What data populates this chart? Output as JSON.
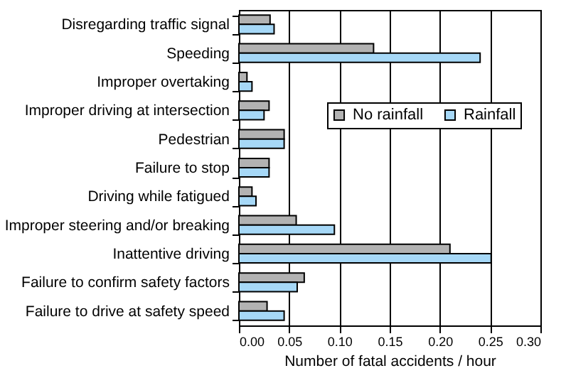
{
  "chart_data": {
    "type": "bar",
    "orientation": "horizontal",
    "xlabel": "Number of fatal accidents / hour",
    "categories": [
      "Disregarding traffic signal",
      "Speeding",
      "Improper overtaking",
      "Improper driving at intersection",
      "Pedestrian",
      "Failure to stop",
      "Driving while fatigued",
      "Improper steering and/or breaking",
      "Inattentive driving",
      "Failure to confirm safety factors",
      "Failure to drive at safety speed"
    ],
    "series": [
      {
        "name": "No rainfall",
        "color": "#b2b2b2",
        "values": [
          0.031,
          0.134,
          0.008,
          0.03,
          0.045,
          0.03,
          0.013,
          0.057,
          0.21,
          0.065,
          0.028
        ]
      },
      {
        "name": "Rainfall",
        "color": "#a6d8f7",
        "values": [
          0.035,
          0.24,
          0.013,
          0.025,
          0.045,
          0.03,
          0.017,
          0.095,
          0.251,
          0.058,
          0.045
        ]
      }
    ],
    "xlim": [
      0,
      0.3
    ],
    "xticks": [
      {
        "value": 0,
        "label": "0.00"
      },
      {
        "value": 0.05,
        "label": "0.05"
      },
      {
        "value": 0.1,
        "label": "0.10"
      },
      {
        "value": 0.15,
        "label": "0.15"
      },
      {
        "value": 0.2,
        "label": "0.20"
      },
      {
        "value": 0.25,
        "label": "0.25"
      },
      {
        "value": 0.3,
        "label": "0.30"
      }
    ],
    "grid": "x",
    "legend": "right"
  }
}
